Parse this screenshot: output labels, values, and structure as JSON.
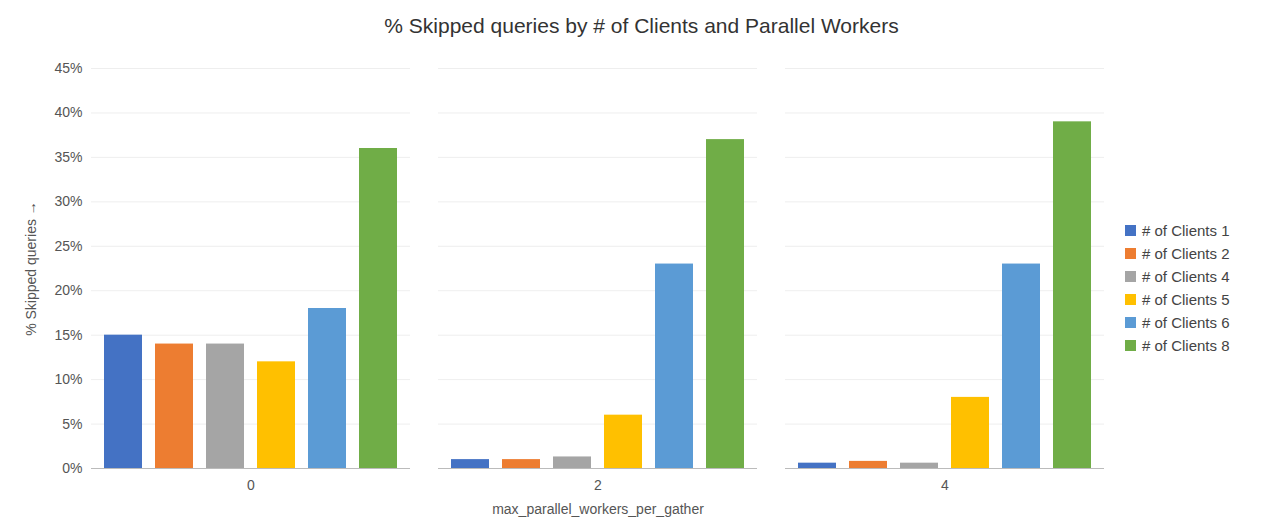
{
  "chart_data": {
    "type": "bar",
    "title": "% Skipped queries by # of Clients and Parallel Workers",
    "x_label": "max_parallel_workers_per_gather",
    "y_label": "% Skipped queries",
    "categories": [
      "0",
      "2",
      "4"
    ],
    "series": [
      {
        "name": "# of Clients 1",
        "color": "#4472C4",
        "values": [
          15,
          1,
          0.6
        ]
      },
      {
        "name": "# of Clients 2",
        "color": "#ED7D31",
        "values": [
          14,
          1,
          0.8
        ]
      },
      {
        "name": "# of Clients 4",
        "color": "#A5A5A5",
        "values": [
          14,
          1.3,
          0.6
        ]
      },
      {
        "name": "# of Clients 5",
        "color": "#FFC000",
        "values": [
          12,
          6,
          8
        ]
      },
      {
        "name": "# of Clients 6",
        "color": "#5B9BD5",
        "values": [
          18,
          23,
          23
        ]
      },
      {
        "name": "# of Clients 8",
        "color": "#70AD47",
        "values": [
          36,
          37,
          39
        ]
      }
    ],
    "ylim": [
      0,
      45
    ],
    "yticks": [
      {
        "value": 0,
        "label": "0%"
      },
      {
        "value": 5,
        "label": "5%"
      },
      {
        "value": 10,
        "label": "10%"
      },
      {
        "value": 15,
        "label": "15%"
      },
      {
        "value": 20,
        "label": "20%"
      },
      {
        "value": 25,
        "label": "25%"
      },
      {
        "value": 30,
        "label": "30%"
      },
      {
        "value": 35,
        "label": "35%"
      },
      {
        "value": 40,
        "label": "40%"
      },
      {
        "value": 45,
        "label": "45%"
      }
    ],
    "grid": true,
    "legend": "right"
  }
}
